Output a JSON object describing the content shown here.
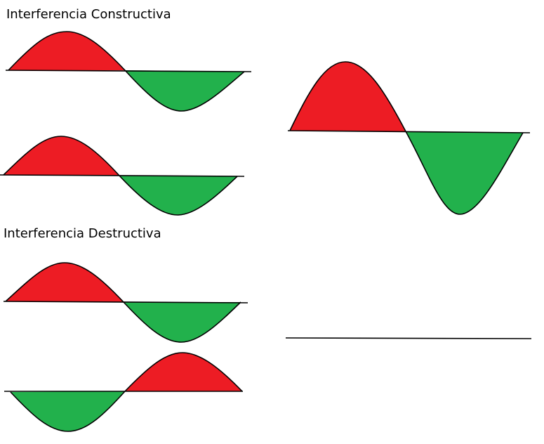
{
  "titles": {
    "constructive": "Interferencia Constructiva",
    "destructive": "Interferencia Destructiva"
  },
  "colors": {
    "positive_lobe": "#ed1c24",
    "negative_lobe": "#22b14c",
    "stroke": "#000000",
    "background": "#ffffff"
  }
}
